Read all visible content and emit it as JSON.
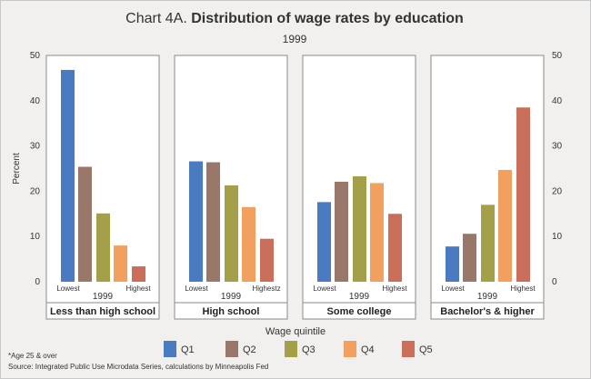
{
  "title_prefix": "Chart 4A.",
  "title_main": "Distribution of wage rates by education",
  "subtitle": "1999",
  "footnote": "*Age 25 & over",
  "source": "Source: Integrated Public Use Microdata Series, calculations by Minneapolis Fed",
  "colors": {
    "Q1": "#4a7bc0",
    "Q2": "#99786a",
    "Q3": "#a4a04a",
    "Q4": "#f1a060",
    "Q5": "#c86e5a",
    "panel_bg": "#ffffff",
    "frame_bg": "#f1f0ee"
  },
  "chart_data": {
    "type": "bar",
    "ylabel": "Percent",
    "xlabel": "Wage quintile",
    "ylim": [
      0,
      50
    ],
    "yticks": [
      0,
      10,
      20,
      30,
      40,
      50
    ],
    "grid": false,
    "legend_position": "bottom",
    "series_names": [
      "Q1",
      "Q2",
      "Q3",
      "Q4",
      "Q5"
    ],
    "panels": [
      {
        "label": "Less than high school",
        "year": "1999",
        "low_label": "Lowest",
        "high_label": "Highest",
        "values": [
          46.8,
          25.4,
          15.1,
          8.0,
          3.4
        ]
      },
      {
        "label": "High school",
        "year": "1999",
        "low_label": "Lowest",
        "high_label": "Highestz",
        "values": [
          26.6,
          26.4,
          21.3,
          16.5,
          9.5
        ]
      },
      {
        "label": "Some college",
        "year": "1999",
        "low_label": "Lowest",
        "high_label": "Highest",
        "values": [
          17.6,
          22.1,
          23.3,
          21.8,
          15.0
        ]
      },
      {
        "label": "Bachelor's & higher",
        "year": "1999",
        "low_label": "Lowest",
        "high_label": "Highest",
        "values": [
          7.8,
          10.6,
          17.0,
          24.7,
          38.5
        ]
      }
    ]
  }
}
